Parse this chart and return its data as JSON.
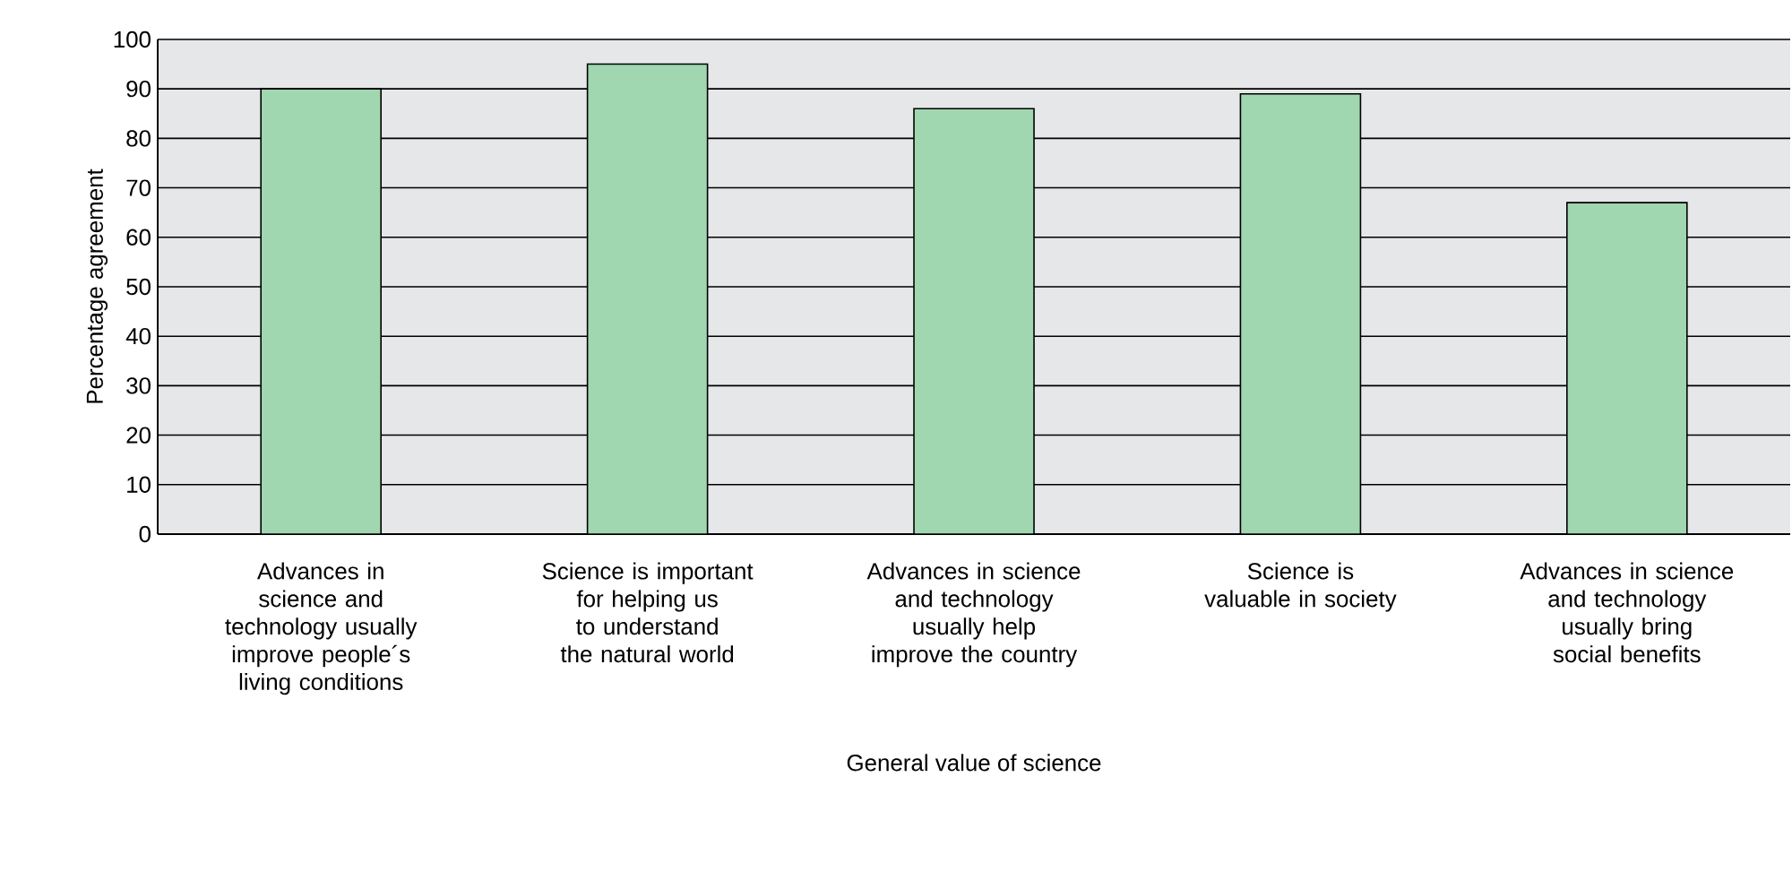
{
  "chart_data": {
    "type": "bar",
    "categories": [
      "Advances in science and technology usually improve people´s living conditions",
      "Science is important for helping us to understand the natural world",
      "Advances in science and technology usually help improve the country",
      "Science is valuable in society",
      "Advances in science and technology usually bring social benefits"
    ],
    "values": [
      90,
      95,
      86,
      89,
      67
    ],
    "color": "#a0d6b0",
    "xlabel": "General value of science",
    "ylabel": "Percentage agreement",
    "ylim": [
      0,
      100
    ],
    "yticks": [
      0,
      10,
      20,
      30,
      40,
      50,
      60,
      70,
      80,
      90,
      100
    ],
    "grid": "y"
  }
}
